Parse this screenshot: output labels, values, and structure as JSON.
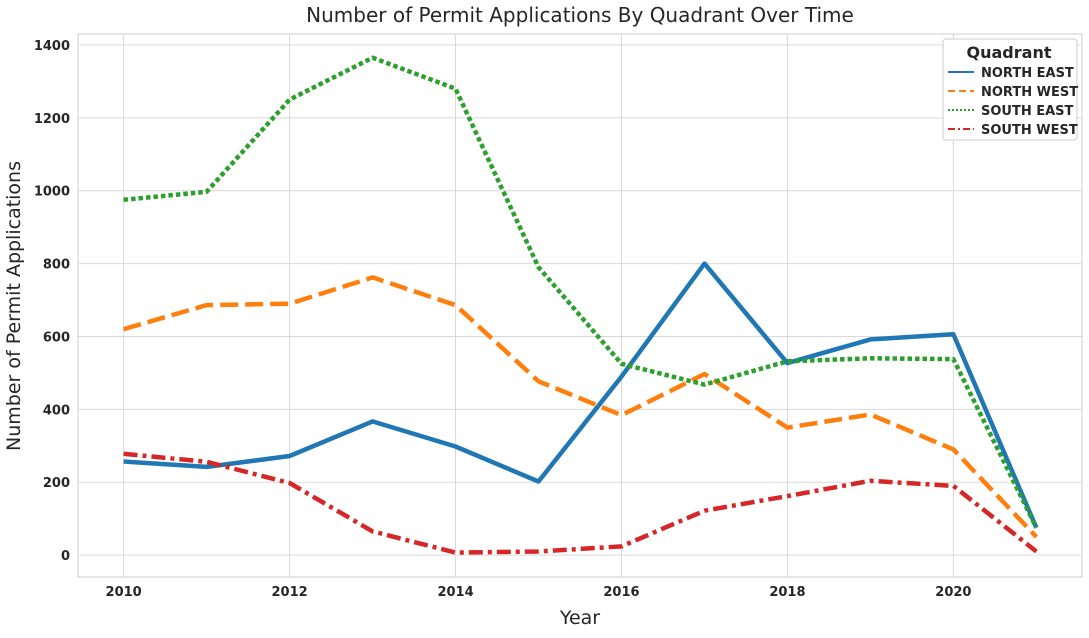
{
  "chart_data": {
    "type": "line",
    "title": "Number of Permit Applications By Quadrant Over Time",
    "xlabel": "Year",
    "ylabel": "Number of Permit Applications",
    "x": [
      2010,
      2011,
      2012,
      2013,
      2014,
      2015,
      2016,
      2017,
      2018,
      2019,
      2020,
      2021
    ],
    "xlim": [
      2009.45,
      2021.55
    ],
    "ylim": [
      -60,
      1430
    ],
    "x_ticks": [
      2010,
      2012,
      2014,
      2016,
      2018,
      2020
    ],
    "y_ticks": [
      0,
      200,
      400,
      600,
      800,
      1000,
      1200,
      1400
    ],
    "grid": true,
    "legend": {
      "title": "Quadrant",
      "placement": "top-right"
    },
    "series": [
      {
        "name": "NORTH EAST",
        "color": "#1f77b4",
        "dash": "solid",
        "values": [
          257,
          242,
          272,
          367,
          298,
          202,
          490,
          800,
          527,
          592,
          606,
          75
        ]
      },
      {
        "name": "NORTH WEST",
        "color": "#ff7f0e",
        "dash": "dashed",
        "values": [
          620,
          686,
          690,
          762,
          686,
          477,
          384,
          497,
          350,
          386,
          290,
          50
        ]
      },
      {
        "name": "SOUTH EAST",
        "color": "#2ca02c",
        "dash": "dotted",
        "values": [
          975,
          997,
          1250,
          1365,
          1280,
          790,
          525,
          468,
          532,
          540,
          538,
          75
        ]
      },
      {
        "name": "SOUTH WEST",
        "color": "#d62728",
        "dash": "dashdot",
        "values": [
          278,
          256,
          198,
          65,
          7,
          10,
          24,
          122,
          162,
          204,
          190,
          10
        ]
      }
    ]
  }
}
